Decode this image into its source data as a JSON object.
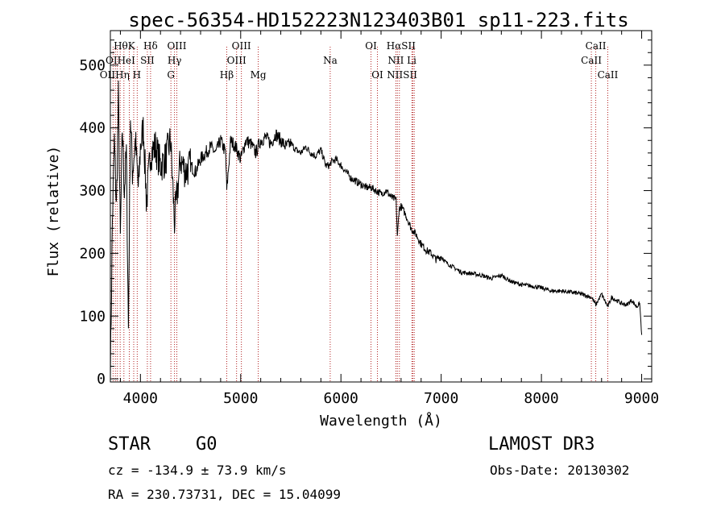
{
  "chart_data": {
    "type": "line",
    "title": "spec-56354-HD152223N123403B01_sp11-223.fits",
    "xlabel": "Wavelength (Å)",
    "ylabel": "Flux (relative)",
    "xlim": [
      3700,
      9100
    ],
    "ylim": [
      -5,
      555
    ],
    "xticks": [
      4000,
      5000,
      6000,
      7000,
      8000,
      9000
    ],
    "yticks": [
      0,
      100,
      200,
      300,
      400,
      500
    ],
    "series": [
      {
        "name": "flux",
        "x": [
          3700,
          3720,
          3740,
          3760,
          3780,
          3800,
          3820,
          3840,
          3860,
          3880,
          3900,
          3920,
          3950,
          3980,
          4000,
          4030,
          4060,
          4100,
          4150,
          4200,
          4250,
          4300,
          4340,
          4400,
          4450,
          4500,
          4550,
          4600,
          4650,
          4700,
          4750,
          4800,
          4850,
          4861,
          4900,
          4950,
          5000,
          5050,
          5100,
          5150,
          5200,
          5250,
          5300,
          5350,
          5400,
          5450,
          5500,
          5550,
          5600,
          5650,
          5700,
          5750,
          5800,
          5850,
          5890,
          5900,
          5950,
          6000,
          6050,
          6100,
          6150,
          6200,
          6250,
          6300,
          6350,
          6400,
          6450,
          6500,
          6550,
          6563,
          6580,
          6600,
          6650,
          6700,
          6750,
          6800,
          6850,
          6900,
          6950,
          7000,
          7050,
          7100,
          7150,
          7200,
          7300,
          7400,
          7500,
          7600,
          7700,
          7800,
          7900,
          8000,
          8100,
          8200,
          8300,
          8400,
          8500,
          8542,
          8600,
          8662,
          8700,
          8750,
          8800,
          8850,
          8900,
          8950,
          8980,
          9000
        ],
        "y": [
          0,
          250,
          380,
          270,
          450,
          220,
          400,
          300,
          360,
          80,
          420,
          330,
          380,
          300,
          370,
          400,
          280,
          360,
          370,
          340,
          350,
          380,
          250,
          350,
          330,
          340,
          330,
          350,
          360,
          370,
          360,
          380,
          360,
          300,
          380,
          370,
          350,
          380,
          375,
          360,
          380,
          385,
          375,
          390,
          380,
          370,
          375,
          365,
          360,
          370,
          360,
          355,
          365,
          340,
          340,
          345,
          350,
          340,
          330,
          320,
          315,
          310,
          305,
          305,
          300,
          295,
          300,
          290,
          285,
          225,
          270,
          275,
          260,
          240,
          230,
          215,
          205,
          200,
          190,
          195,
          185,
          180,
          175,
          170,
          168,
          165,
          160,
          165,
          155,
          150,
          148,
          145,
          140,
          140,
          138,
          135,
          130,
          118,
          135,
          115,
          130,
          125,
          120,
          118,
          125,
          115,
          120,
          70
        ]
      }
    ],
    "spectral_lines": [
      {
        "label": "HθK",
        "x": 3840,
        "row": 1
      },
      {
        "label": "Hδ",
        "x": 4101,
        "row": 1
      },
      {
        "label": "OIII",
        "x": 4363,
        "row": 1
      },
      {
        "label": "OIII",
        "x": 5007,
        "row": 1
      },
      {
        "label": "OI",
        "x": 6300,
        "row": 1
      },
      {
        "label": "HαSII",
        "x": 6600,
        "row": 1
      },
      {
        "label": "CaII",
        "x": 8542,
        "row": 1
      },
      {
        "label": "OIHeI",
        "x": 3800,
        "row": 2
      },
      {
        "label": "SII",
        "x": 4069,
        "row": 2
      },
      {
        "label": "Hγ",
        "x": 4340,
        "row": 2
      },
      {
        "label": "OIII",
        "x": 4959,
        "row": 2
      },
      {
        "label": "Na",
        "x": 5893,
        "row": 2
      },
      {
        "label": "NII Li",
        "x": 6610,
        "row": 2
      },
      {
        "label": "CaII",
        "x": 8498,
        "row": 2
      },
      {
        "label": "OIIHη H",
        "x": 3800,
        "row": 3
      },
      {
        "label": "G",
        "x": 4304,
        "row": 3
      },
      {
        "label": "Hβ",
        "x": 4861,
        "row": 3
      },
      {
        "label": "Mg",
        "x": 5175,
        "row": 3
      },
      {
        "label": "OI",
        "x": 6364,
        "row": 3
      },
      {
        "label": "NIISII",
        "x": 6610,
        "row": 3
      },
      {
        "label": "CaII",
        "x": 8662,
        "row": 3
      }
    ],
    "line_marks": [
      3727,
      3750,
      3770,
      3798,
      3835,
      3889,
      3933,
      3968,
      4069,
      4101,
      4304,
      4340,
      4363,
      4861,
      4959,
      5007,
      5175,
      5893,
      6300,
      6364,
      6548,
      6563,
      6583,
      6708,
      6717,
      6731,
      8498,
      8542,
      8662
    ]
  },
  "info": {
    "object_class": "STAR",
    "subclass": "G0",
    "survey": "LAMOST DR3",
    "cz": "cz = -134.9 ± 73.9 km/s",
    "obs_date": "Obs-Date: 20130302",
    "coords": "RA = 230.73731, DEC =  15.04099"
  },
  "colors": {
    "spectrum": "#000000",
    "line_marker": "#b22222"
  }
}
